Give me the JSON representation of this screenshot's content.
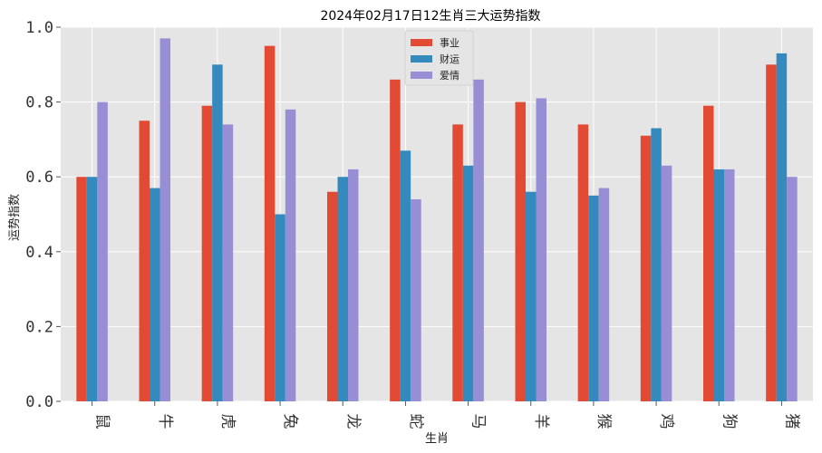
{
  "chart_data": {
    "type": "bar",
    "title": "2024年02月17日12生肖三大运势指数",
    "xlabel": "生肖",
    "ylabel": "运势指数",
    "ylim": [
      0,
      1.0
    ],
    "yticks": [
      "0.0",
      "0.2",
      "0.4",
      "0.6",
      "0.8",
      "1.0"
    ],
    "categories": [
      "鼠",
      "牛",
      "虎",
      "兔",
      "龙",
      "蛇",
      "马",
      "羊",
      "猴",
      "鸡",
      "狗",
      "猪"
    ],
    "series": [
      {
        "name": "事业",
        "color": "#E24A33",
        "values": [
          0.6,
          0.75,
          0.79,
          0.95,
          0.56,
          0.86,
          0.74,
          0.8,
          0.74,
          0.71,
          0.79,
          0.9
        ]
      },
      {
        "name": "财运",
        "color": "#348ABD",
        "values": [
          0.6,
          0.57,
          0.9,
          0.5,
          0.6,
          0.67,
          0.63,
          0.56,
          0.55,
          0.73,
          0.62,
          0.93
        ]
      },
      {
        "name": "爱情",
        "color": "#988ED5",
        "values": [
          0.8,
          0.97,
          0.74,
          0.78,
          0.62,
          0.54,
          0.86,
          0.81,
          0.57,
          0.63,
          0.62,
          0.6
        ]
      }
    ],
    "grid": true,
    "legend_position": "top-center"
  }
}
